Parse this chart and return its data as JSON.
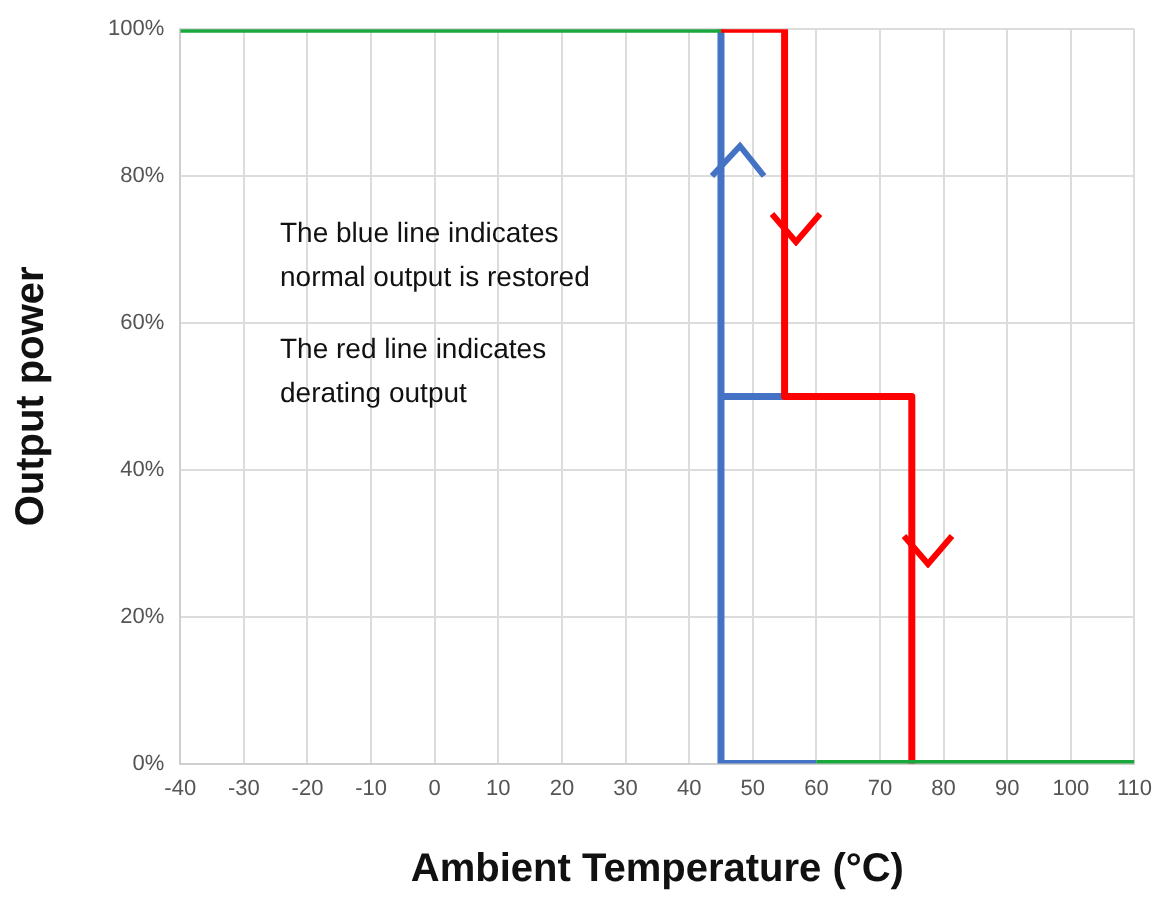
{
  "chart_data": {
    "type": "line",
    "xlabel": "Ambient Temperature (°C)",
    "ylabel": "Output power",
    "annotations": [
      "The blue line indicates normal output is restored",
      "The red line indicates derating output"
    ],
    "series": [
      {
        "color": "#1aa83c",
        "x": [
          -40,
          45,
          50,
          60,
          110
        ],
        "values": [
          100,
          100,
          null,
          0,
          0
        ]
      },
      {
        "color": "#ff0000",
        "x": [
          45,
          55,
          55,
          75,
          75
        ],
        "values": [
          100,
          100,
          50,
          50,
          0
        ]
      },
      {
        "color": "#4472c4",
        "x": [
          60,
          45,
          45,
          55,
          45,
          45
        ],
        "values": [
          0,
          0,
          50,
          50,
          50,
          100
        ]
      }
    ],
    "xlim": [
      -40,
      110
    ],
    "xticks": [
      -40,
      -30,
      -20,
      -10,
      0,
      10,
      20,
      30,
      40,
      50,
      60,
      70,
      80,
      90,
      100,
      110
    ],
    "ylim": [
      0,
      100
    ],
    "yticks": [
      {
        "value": 0,
        "label": "0%"
      },
      {
        "value": 20,
        "label": "20%"
      },
      {
        "value": 40,
        "label": "40%"
      },
      {
        "value": 60,
        "label": "60%"
      },
      {
        "value": 80,
        "label": "80%"
      },
      {
        "value": 100,
        "label": "100%"
      }
    ],
    "grid": true,
    "legend": false,
    "marker": "none",
    "line_style": "solid"
  }
}
